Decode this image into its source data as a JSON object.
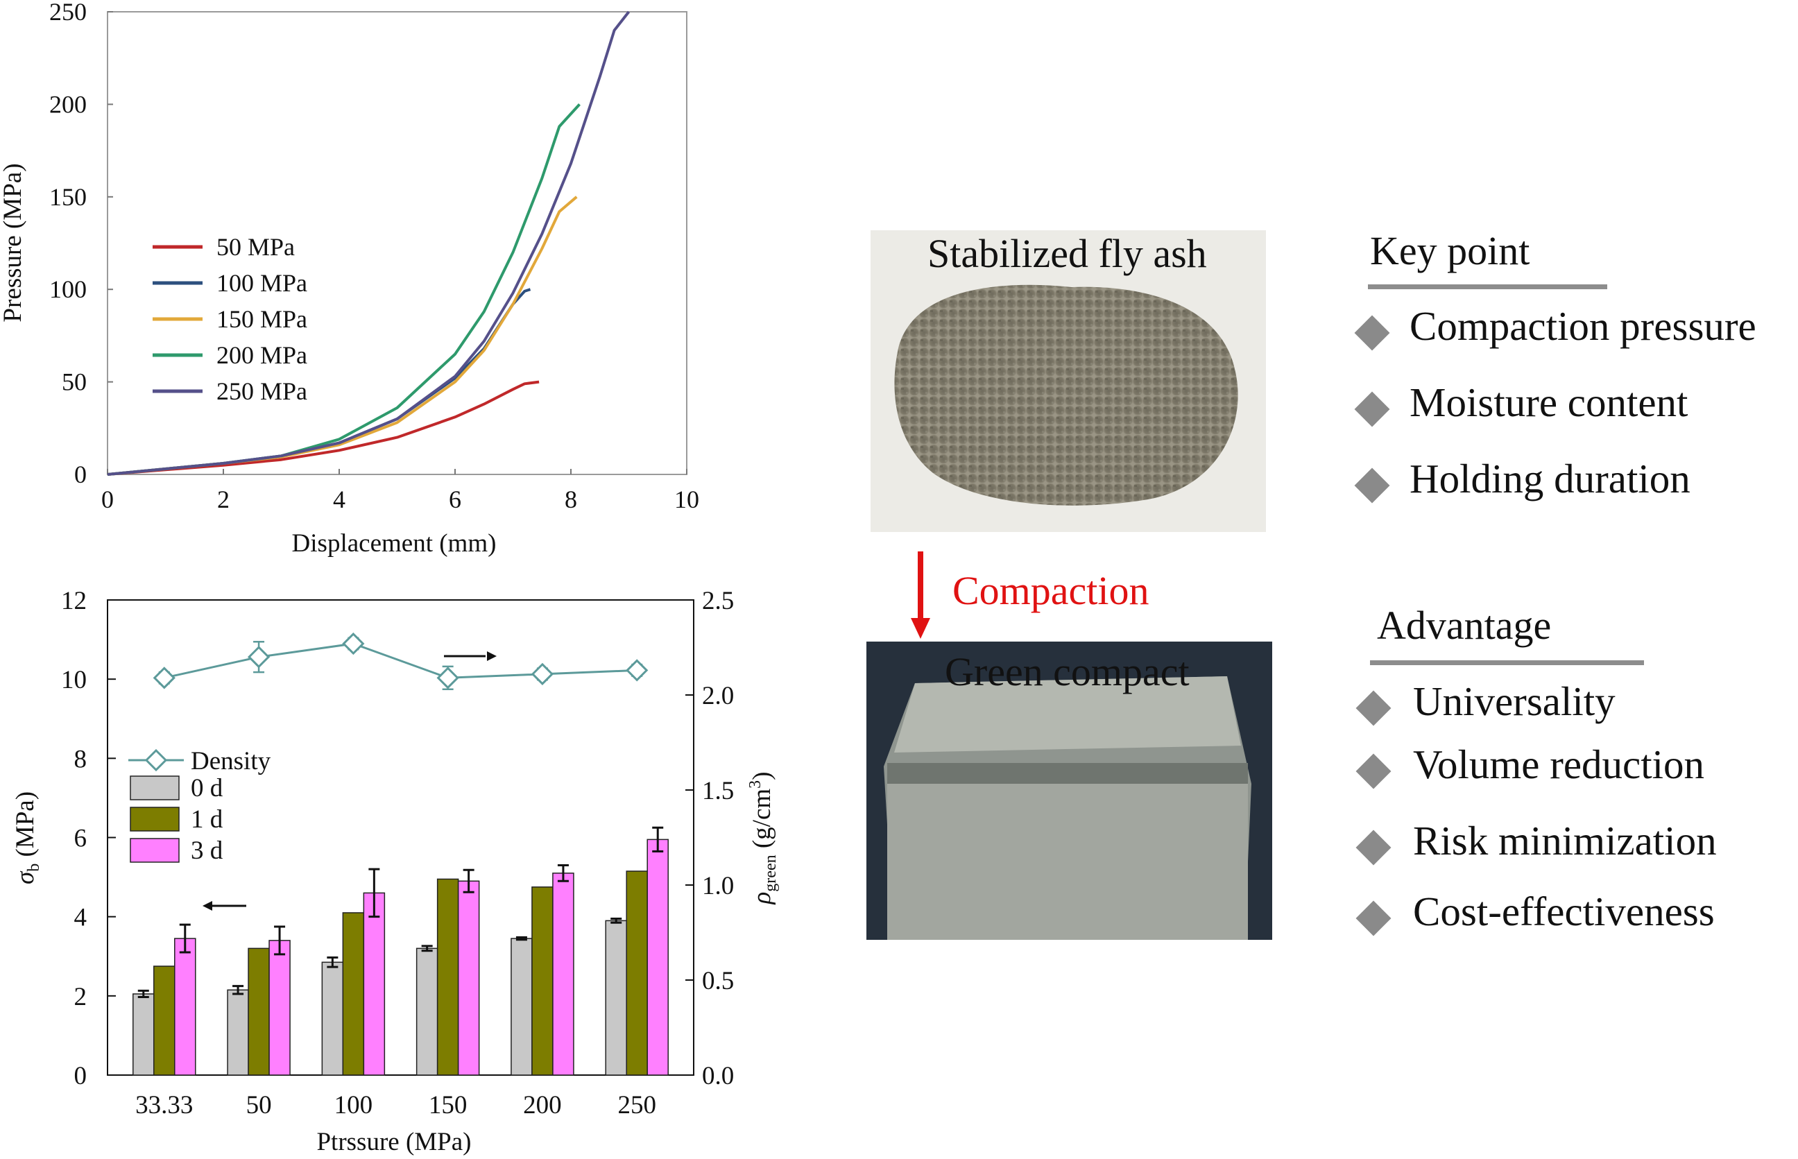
{
  "colors": {
    "series_50": "#c0282a",
    "series_100": "#2c4f7e",
    "series_150": "#e2a83a",
    "series_200": "#2e9a6c",
    "series_250": "#55508a",
    "density": "#5c9a9a",
    "bar_0d": "#c8c8c8",
    "bar_1d": "#7d7d00",
    "bar_3d": "#ff80ff",
    "compaction_arrow": "#e01212",
    "diamond": "#8a8a8a"
  },
  "chart_data": [
    {
      "type": "line",
      "title": "",
      "xlabel": "Displacement (mm)",
      "ylabel": "Pressure (MPa)",
      "xlim": [
        0,
        10
      ],
      "ylim": [
        0,
        250
      ],
      "xticks": [
        "0",
        "2",
        "4",
        "6",
        "8",
        "10"
      ],
      "yticks": [
        "0",
        "50",
        "100",
        "150",
        "200",
        "250"
      ],
      "legend_position": "middle-left",
      "series": [
        {
          "name": "50 MPa",
          "x": [
            0,
            1,
            2,
            3,
            4,
            5,
            6,
            6.5,
            7,
            7.2,
            7.45
          ],
          "y": [
            0,
            2.5,
            5,
            8,
            13,
            20,
            31,
            38,
            46,
            49,
            50
          ]
        },
        {
          "name": "100 MPa",
          "x": [
            0,
            1,
            2,
            3,
            4,
            5,
            6,
            6.5,
            7,
            7.2,
            7.3
          ],
          "y": [
            0,
            3,
            6,
            10,
            17,
            30,
            52,
            68,
            92,
            99,
            100
          ]
        },
        {
          "name": "150 MPa",
          "x": [
            0,
            1,
            2,
            3,
            4,
            5,
            6,
            6.5,
            7,
            7.5,
            7.8,
            8.1
          ],
          "y": [
            0,
            3,
            6,
            9.5,
            16,
            28,
            50,
            67,
            92,
            122,
            142,
            150
          ]
        },
        {
          "name": "200 MPa",
          "x": [
            0,
            1,
            2,
            3,
            4,
            5,
            6,
            6.5,
            7,
            7.5,
            7.8,
            8.15
          ],
          "y": [
            0,
            3,
            6,
            10,
            19,
            36,
            65,
            88,
            120,
            160,
            188,
            200
          ]
        },
        {
          "name": "250 MPa",
          "x": [
            0,
            1,
            2,
            3,
            4,
            5,
            6,
            6.5,
            7,
            7.5,
            8,
            8.5,
            8.75,
            9
          ],
          "y": [
            0,
            3,
            6,
            10,
            17,
            30,
            53,
            72,
            98,
            130,
            168,
            215,
            240,
            250
          ]
        }
      ]
    },
    {
      "type": "bar",
      "title": "",
      "xlabel": "Ptrssure (MPa)",
      "ylabel": "σb (MPa)",
      "ylabel_right": "ρgreen (g/cm3)",
      "categories": [
        "33.33",
        "50",
        "100",
        "150",
        "200",
        "250"
      ],
      "ylim": [
        0,
        12
      ],
      "yticks": [
        "0",
        "2",
        "4",
        "6",
        "8",
        "10",
        "12"
      ],
      "ylim_right": [
        0,
        2.5
      ],
      "yticks_right": [
        "0.0",
        "0.5",
        "1.0",
        "1.5",
        "2.0",
        "2.5"
      ],
      "legend_position": "middle-left",
      "series": [
        {
          "name": "0 d",
          "axis": "left",
          "values": [
            2.05,
            2.15,
            2.85,
            3.2,
            3.45,
            3.9
          ],
          "errors": [
            0.08,
            0.1,
            0.12,
            0.06,
            0.03,
            0.05
          ]
        },
        {
          "name": "1 d",
          "axis": "left",
          "values": [
            2.75,
            3.2,
            4.1,
            4.95,
            4.75,
            5.15
          ],
          "errors": [
            0,
            0,
            0,
            0,
            0,
            0
          ]
        },
        {
          "name": "3 d",
          "axis": "left",
          "values": [
            3.45,
            3.4,
            4.6,
            4.9,
            5.1,
            5.95
          ],
          "errors": [
            0.35,
            0.35,
            0.6,
            0.28,
            0.2,
            0.3
          ]
        },
        {
          "name": "Density",
          "axis": "right",
          "type": "line",
          "values": [
            2.09,
            2.2,
            2.27,
            2.09,
            2.11,
            2.13
          ],
          "errors": [
            0.03,
            0.08,
            0.03,
            0.06,
            0.03,
            0.03
          ]
        }
      ]
    }
  ],
  "photos": {
    "top_label": "Stabilized fly ash",
    "bottom_label": "Green compact",
    "arrow_label": "Compaction"
  },
  "key_point": {
    "title": "Key point",
    "items": [
      "Compaction pressure",
      "Moisture content",
      "Holding duration"
    ]
  },
  "advantage": {
    "title": "Advantage",
    "items": [
      "Universality",
      "Volume reduction",
      "Risk minimization",
      "Cost-effectiveness"
    ]
  }
}
